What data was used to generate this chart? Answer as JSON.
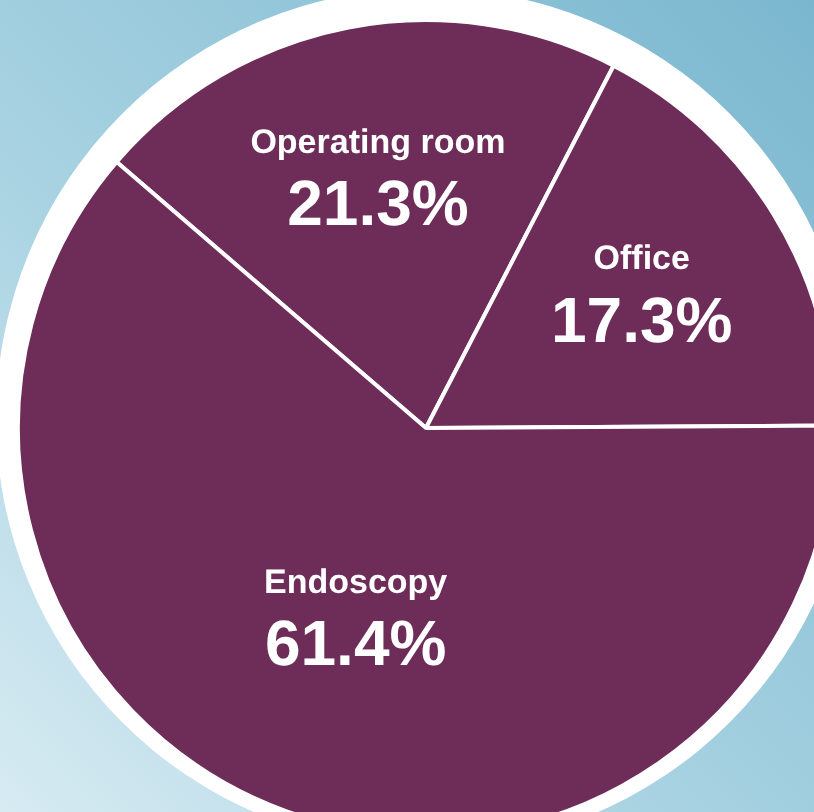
{
  "chart_data": {
    "type": "pie",
    "categories": [
      "Operating room",
      "Office",
      "Endoscopy"
    ],
    "values": [
      21.3,
      17.3,
      61.4
    ],
    "colors": [
      "#6e2c58",
      "#6e2c58",
      "#6e2c58"
    ],
    "value_labels": [
      "21.3%",
      "17.3%",
      "61.4%"
    ],
    "legend": false
  }
}
